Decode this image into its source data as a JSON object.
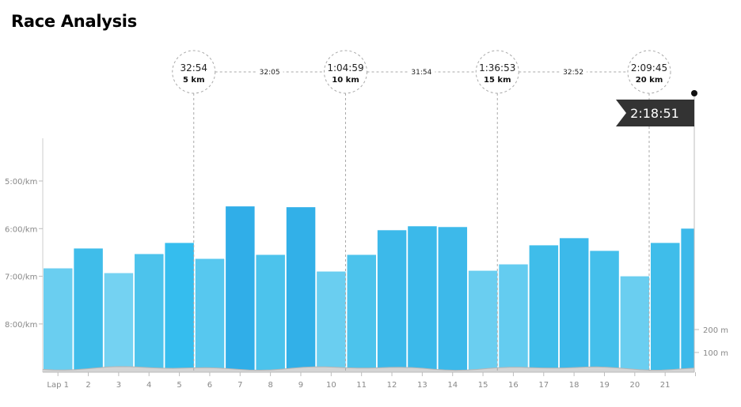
{
  "title": "Race Analysis",
  "chart_data": {
    "type": "bar",
    "categories": [
      "Lap 1",
      "2",
      "3",
      "4",
      "5",
      "6",
      "7",
      "8",
      "9",
      "10",
      "11",
      "12",
      "13",
      "14",
      "15",
      "16",
      "17",
      "18",
      "19",
      "20",
      "21",
      ""
    ],
    "pace_seconds_per_km": [
      410,
      385,
      416,
      392,
      378,
      398,
      332,
      393,
      333,
      414,
      393,
      362,
      357,
      358,
      413,
      405,
      381,
      372,
      388,
      420,
      378,
      360
    ],
    "bar_colors": [
      "#6acef0",
      "#3fbdea",
      "#74d2f2",
      "#4cc3ec",
      "#35bdee",
      "#57c8ef",
      "#30aee8",
      "#4cc3ec",
      "#32b0e8",
      "#6acef0",
      "#4cc3ec",
      "#3cb9ea",
      "#3bb9ea",
      "#3db9ea",
      "#6acef0",
      "#64ccf0",
      "#3fbdea",
      "#3cb9ea",
      "#44bfeb",
      "#6acef0",
      "#3fbdea",
      "#3cb9ea"
    ],
    "y_ticks": [
      "5:00/km",
      "6:00/km",
      "7:00/km",
      "8:00/km"
    ],
    "y_tick_values": [
      300,
      360,
      420,
      480
    ],
    "elevation_ticks": [
      "200 m",
      "100 m"
    ],
    "splits": [
      {
        "time": "32:54",
        "distance": "5 km",
        "after_lap": 5
      },
      {
        "time": "1:04:59",
        "distance": "10 km",
        "after_lap": 10
      },
      {
        "time": "1:36:53",
        "distance": "15 km",
        "after_lap": 15
      },
      {
        "time": "2:09:45",
        "distance": "20 km",
        "after_lap": 20
      }
    ],
    "segment_times": [
      "32:05",
      "31:54",
      "32:52"
    ],
    "finish_time": "2:18:51"
  }
}
